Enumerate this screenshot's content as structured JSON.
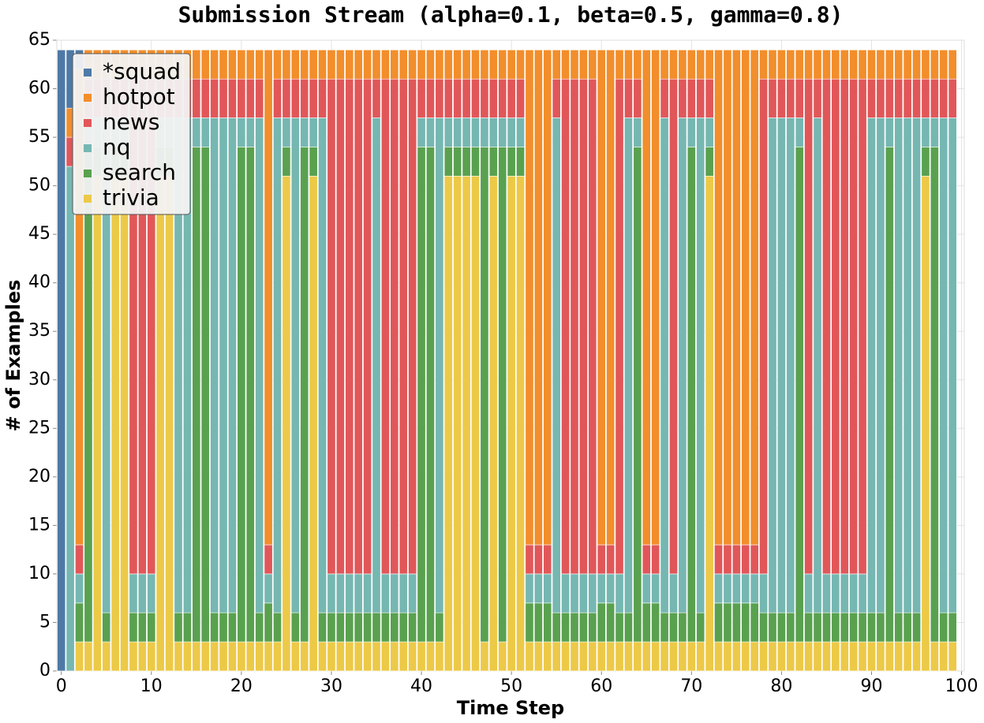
{
  "chart_data": {
    "type": "bar",
    "stacked": true,
    "title": "Submission Stream (alpha=0.1, beta=0.5, gamma=0.8)",
    "xlabel": "Time Step",
    "ylabel": "# of Examples",
    "x": [
      0,
      1,
      2,
      3,
      4,
      5,
      6,
      7,
      8,
      9,
      10,
      11,
      12,
      13,
      14,
      15,
      16,
      17,
      18,
      19,
      20,
      21,
      22,
      23,
      24,
      25,
      26,
      27,
      28,
      29,
      30,
      31,
      32,
      33,
      34,
      35,
      36,
      37,
      38,
      39,
      40,
      41,
      42,
      43,
      44,
      45,
      46,
      47,
      48,
      49,
      50,
      51,
      52,
      53,
      54,
      55,
      56,
      57,
      58,
      59,
      60,
      61,
      62,
      63,
      64,
      65,
      66,
      67,
      68,
      69,
      70,
      71,
      72,
      73,
      74,
      75,
      76,
      77,
      78,
      79,
      80,
      81,
      82,
      83,
      84,
      85,
      86,
      87,
      88,
      89,
      90,
      91,
      92,
      93,
      94,
      95,
      96,
      97,
      98,
      99
    ],
    "series": [
      {
        "name": "*squad",
        "color": "#4e79a7",
        "values": [
          64,
          6,
          2,
          0,
          0,
          0,
          0,
          0,
          0,
          0,
          0,
          0,
          0,
          0,
          0,
          0,
          0,
          0,
          0,
          0,
          0,
          0,
          0,
          0,
          0,
          0,
          0,
          0,
          0,
          0,
          0,
          0,
          0,
          0,
          0,
          0,
          0,
          0,
          0,
          0,
          0,
          0,
          0,
          0,
          0,
          0,
          0,
          0,
          0,
          0,
          0,
          0,
          0,
          0,
          0,
          0,
          0,
          0,
          0,
          0,
          0,
          0,
          0,
          0,
          0,
          0,
          0,
          0,
          0,
          0,
          0,
          0,
          0,
          0,
          0,
          0,
          0,
          0,
          0,
          0,
          0,
          0,
          0,
          0,
          0,
          0,
          0,
          0,
          0,
          0,
          0,
          0,
          0,
          0,
          0,
          0,
          0,
          0,
          0,
          0
        ]
      },
      {
        "name": "hotpot",
        "color": "#f28e2b",
        "values": [
          0,
          3,
          49,
          3,
          3,
          3,
          3,
          3,
          3,
          3,
          3,
          3,
          3,
          3,
          3,
          3,
          3,
          3,
          3,
          3,
          3,
          3,
          3,
          51,
          3,
          3,
          3,
          3,
          3,
          3,
          3,
          3,
          3,
          3,
          3,
          3,
          3,
          3,
          3,
          3,
          3,
          3,
          3,
          3,
          3,
          3,
          3,
          3,
          3,
          3,
          3,
          3,
          51,
          51,
          51,
          3,
          3,
          3,
          3,
          3,
          51,
          51,
          3,
          3,
          3,
          51,
          51,
          3,
          3,
          3,
          3,
          3,
          3,
          51,
          51,
          51,
          51,
          51,
          3,
          3,
          3,
          3,
          3,
          3,
          3,
          3,
          3,
          3,
          3,
          3,
          3,
          3,
          3,
          3,
          3,
          3,
          3,
          3,
          3,
          3
        ]
      },
      {
        "name": "news",
        "color": "#e15759",
        "values": [
          0,
          3,
          3,
          4,
          4,
          4,
          4,
          4,
          51,
          51,
          51,
          4,
          4,
          4,
          4,
          4,
          4,
          4,
          4,
          4,
          4,
          4,
          4,
          3,
          4,
          4,
          4,
          4,
          4,
          4,
          51,
          51,
          51,
          51,
          51,
          4,
          51,
          51,
          51,
          51,
          4,
          4,
          4,
          4,
          4,
          4,
          4,
          4,
          4,
          4,
          4,
          4,
          3,
          3,
          3,
          4,
          51,
          51,
          51,
          51,
          3,
          3,
          51,
          4,
          4,
          3,
          3,
          4,
          51,
          4,
          4,
          4,
          4,
          3,
          3,
          3,
          3,
          3,
          51,
          4,
          4,
          4,
          4,
          51,
          4,
          51,
          51,
          51,
          51,
          51,
          4,
          4,
          4,
          4,
          4,
          4,
          4,
          4,
          4,
          4
        ]
      },
      {
        "name": "nq",
        "color": "#76b7b2",
        "values": [
          0,
          52,
          3,
          3,
          3,
          51,
          3,
          3,
          4,
          4,
          4,
          3,
          3,
          51,
          51,
          3,
          3,
          51,
          51,
          51,
          3,
          3,
          51,
          3,
          51,
          3,
          51,
          3,
          3,
          51,
          4,
          4,
          4,
          4,
          4,
          51,
          4,
          4,
          4,
          4,
          3,
          3,
          51,
          3,
          3,
          3,
          3,
          3,
          3,
          3,
          3,
          3,
          3,
          3,
          3,
          51,
          4,
          4,
          4,
          4,
          3,
          3,
          4,
          51,
          3,
          3,
          3,
          51,
          4,
          51,
          3,
          51,
          3,
          3,
          3,
          3,
          3,
          3,
          4,
          51,
          51,
          51,
          3,
          4,
          51,
          4,
          4,
          4,
          4,
          4,
          51,
          51,
          3,
          51,
          51,
          51,
          3,
          3,
          51,
          51
        ]
      },
      {
        "name": "search",
        "color": "#59a14f",
        "values": [
          0,
          0,
          4,
          51,
          3,
          3,
          3,
          3,
          3,
          3,
          3,
          3,
          3,
          3,
          3,
          51,
          51,
          3,
          3,
          3,
          51,
          51,
          3,
          4,
          3,
          3,
          3,
          51,
          3,
          3,
          3,
          3,
          3,
          3,
          3,
          3,
          3,
          3,
          3,
          3,
          51,
          51,
          3,
          3,
          3,
          3,
          3,
          51,
          3,
          51,
          3,
          3,
          4,
          4,
          4,
          3,
          3,
          3,
          3,
          3,
          4,
          4,
          3,
          3,
          51,
          4,
          4,
          3,
          3,
          3,
          51,
          3,
          3,
          4,
          4,
          4,
          4,
          4,
          3,
          3,
          3,
          3,
          51,
          3,
          3,
          3,
          3,
          3,
          3,
          3,
          3,
          3,
          51,
          3,
          3,
          3,
          3,
          51,
          3,
          3
        ]
      },
      {
        "name": "trivia",
        "color": "#edc948",
        "values": [
          0,
          0,
          3,
          3,
          51,
          3,
          51,
          51,
          3,
          3,
          3,
          51,
          51,
          3,
          3,
          3,
          3,
          3,
          3,
          3,
          3,
          3,
          3,
          3,
          3,
          51,
          3,
          3,
          51,
          3,
          3,
          3,
          3,
          3,
          3,
          3,
          3,
          3,
          3,
          3,
          3,
          3,
          3,
          51,
          51,
          51,
          51,
          3,
          51,
          3,
          51,
          51,
          3,
          3,
          3,
          3,
          3,
          3,
          3,
          3,
          3,
          3,
          3,
          3,
          3,
          3,
          3,
          3,
          3,
          3,
          3,
          3,
          51,
          3,
          3,
          3,
          3,
          3,
          3,
          3,
          3,
          3,
          3,
          3,
          3,
          3,
          3,
          3,
          3,
          3,
          3,
          3,
          3,
          3,
          3,
          3,
          51,
          3,
          3,
          3
        ]
      }
    ],
    "xlim": [
      -0.5,
      100.3
    ],
    "xticks": [
      0,
      10,
      20,
      30,
      40,
      50,
      60,
      70,
      80,
      90,
      100
    ],
    "ylim": [
      0,
      65
    ],
    "yticks": [
      0,
      5,
      10,
      15,
      20,
      25,
      30,
      35,
      40,
      45,
      50,
      55,
      60,
      65
    ],
    "grid": true,
    "legend": "upper left"
  }
}
